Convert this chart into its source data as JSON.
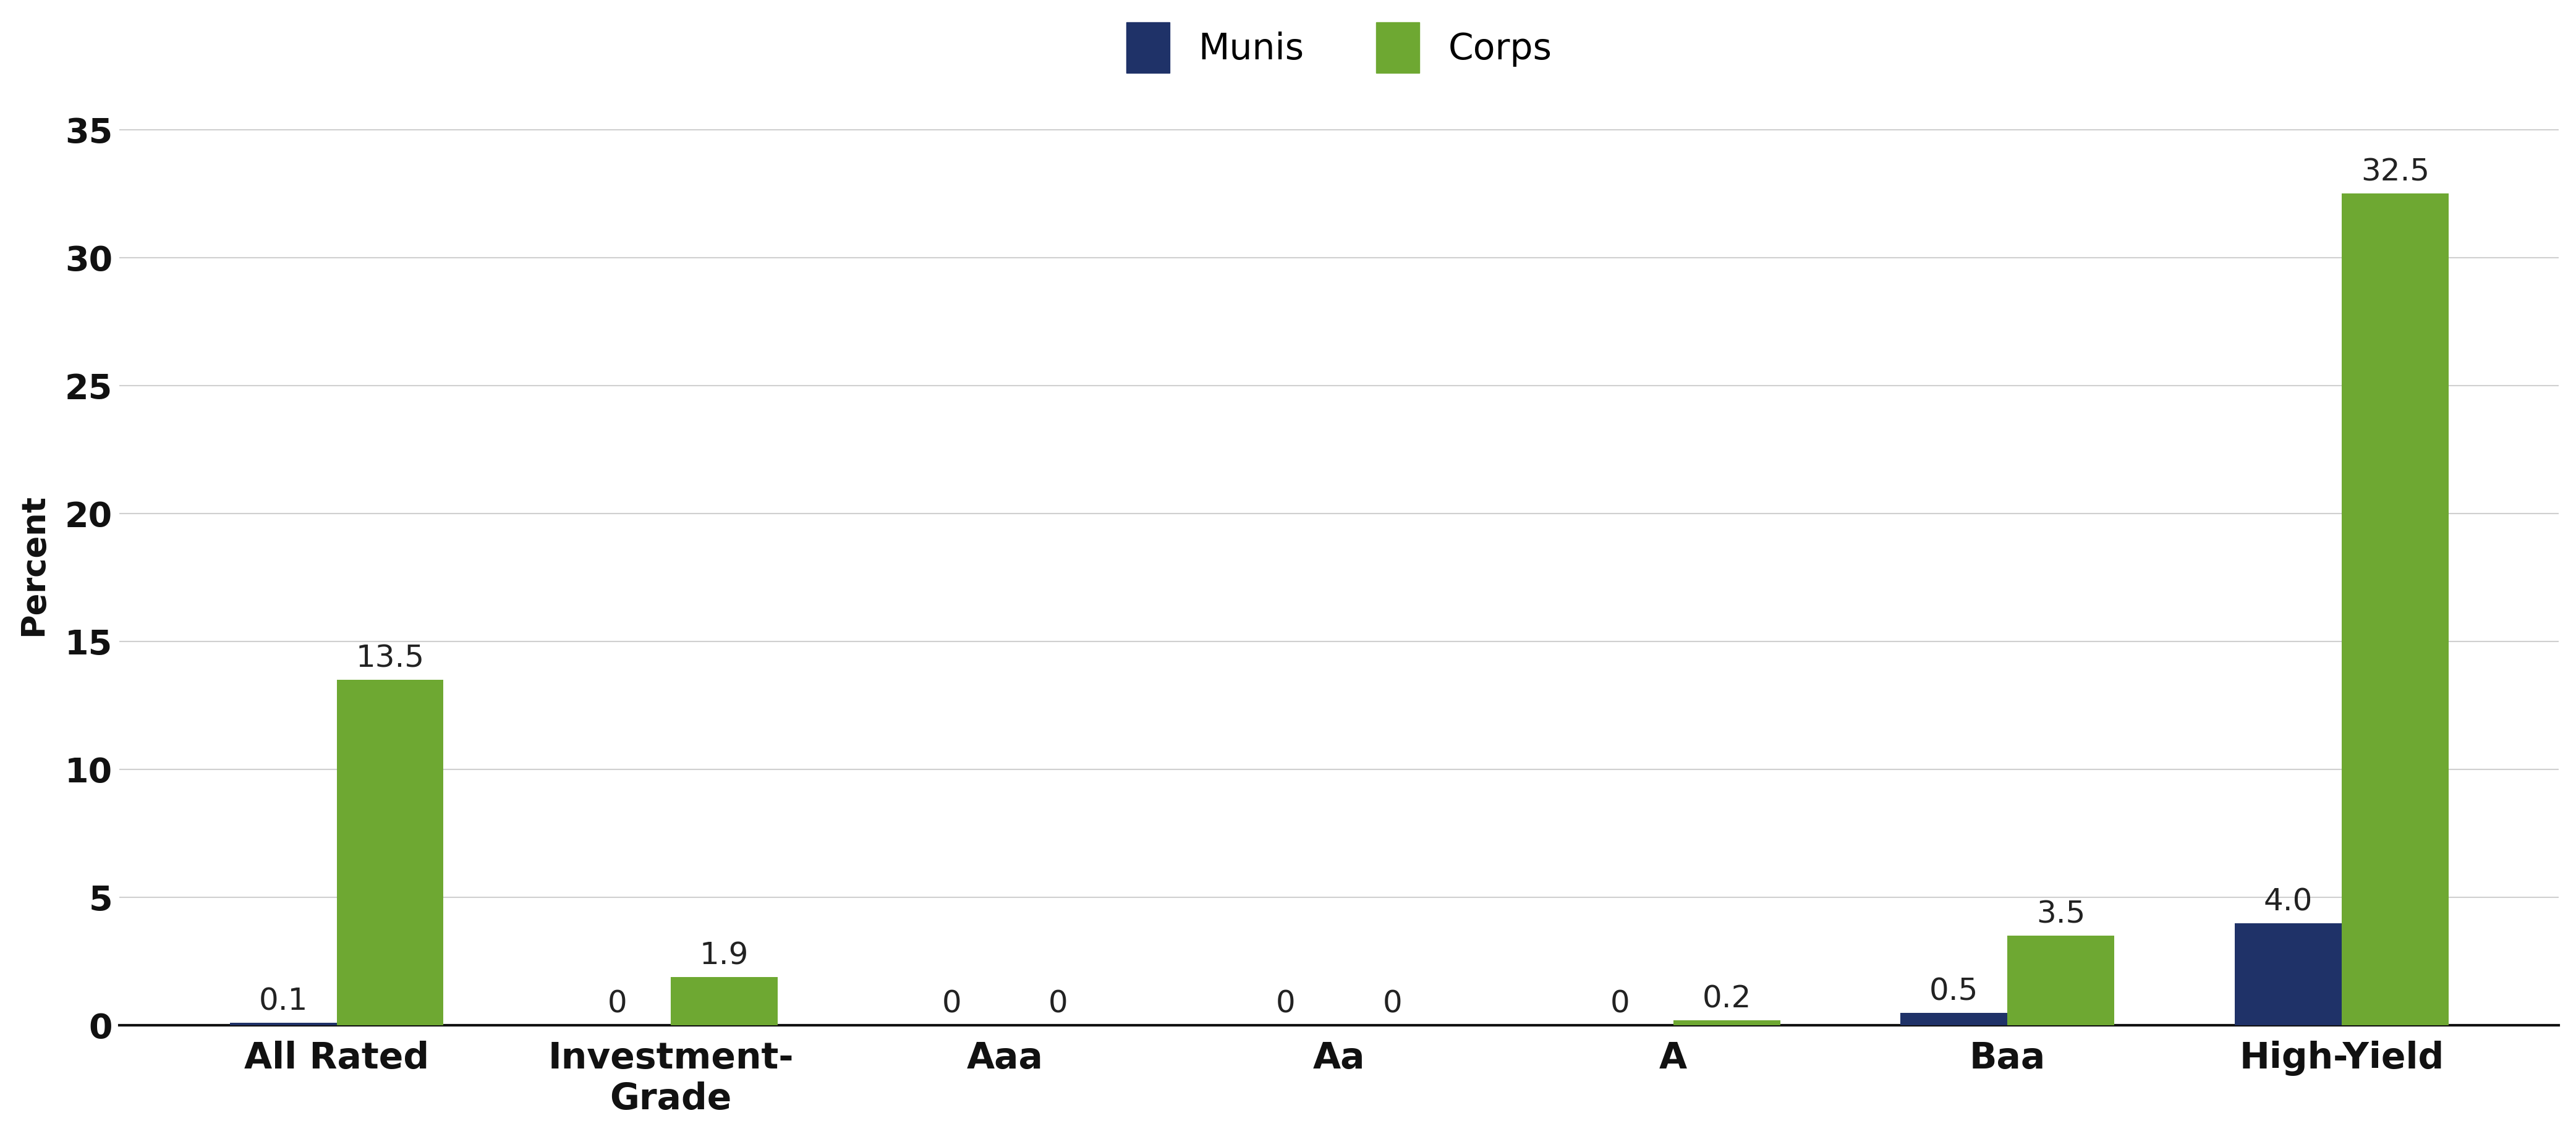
{
  "categories": [
    "All Rated",
    "Investment-\nGrade",
    "Aaa",
    "Aa",
    "A",
    "Baa",
    "High-Yield"
  ],
  "munis_values": [
    0.1,
    0,
    0,
    0,
    0,
    0.5,
    4.0
  ],
  "corps_values": [
    13.5,
    1.9,
    0,
    0,
    0.2,
    3.5,
    32.5
  ],
  "munis_labels": [
    "0.1",
    "0",
    "0",
    "0",
    "0",
    "0.5",
    "4.0"
  ],
  "corps_labels": [
    "13.5",
    "1.9",
    "0",
    "0",
    "0.2",
    "3.5",
    "32.5"
  ],
  "munis_color": "#1f3268",
  "corps_color": "#6ea832",
  "ylabel": "Percent",
  "ylim": [
    0,
    36
  ],
  "yticks": [
    0,
    5,
    10,
    15,
    20,
    25,
    30,
    35
  ],
  "legend_labels": [
    "Munis",
    "Corps"
  ],
  "bar_width": 0.32,
  "background_color": "#ffffff",
  "grid_color": "#d0d0d0",
  "label_fontsize": 38,
  "tick_fontsize": 40,
  "legend_fontsize": 42,
  "bar_label_fontsize": 36,
  "xlabel_fontsize": 42
}
